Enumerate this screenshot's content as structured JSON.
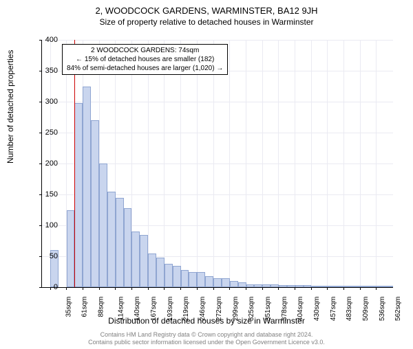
{
  "title": "2, WOODCOCK GARDENS, WARMINSTER, BA12 9JH",
  "subtitle": "Size of property relative to detached houses in Warminster",
  "ylabel": "Number of detached properties",
  "xlabel": "Distribution of detached houses by size in Warminster",
  "footer_line1": "Contains HM Land Registry data © Crown copyright and database right 2024.",
  "footer_line2": "Contains public sector information licensed under the Open Government Licence v3.0.",
  "legend": {
    "line1": "2 WOODCOCK GARDENS: 74sqm",
    "line2": "← 15% of detached houses are smaller (182)",
    "line3": "84% of semi-detached houses are larger (1,020) →"
  },
  "chart": {
    "type": "histogram",
    "ylim": [
      0,
      400
    ],
    "ytick_step": 50,
    "bar_fill": "#c9d5ee",
    "bar_stroke": "#8fa5d1",
    "grid_color": "#eaeaf2",
    "vline_color": "#cc0000",
    "vline_x": 74,
    "x_start": 22,
    "x_step": 13.2,
    "x_count": 43,
    "xticks": [
      35,
      61,
      88,
      114,
      140,
      167,
      193,
      219,
      246,
      272,
      299,
      325,
      351,
      378,
      404,
      430,
      457,
      483,
      509,
      536,
      562
    ],
    "bars": [
      0,
      60,
      0,
      125,
      298,
      325,
      270,
      200,
      155,
      145,
      128,
      90,
      85,
      55,
      48,
      38,
      35,
      28,
      25,
      25,
      18,
      15,
      15,
      10,
      8,
      5,
      5,
      4,
      4,
      3,
      3,
      3,
      3,
      2,
      2,
      2,
      2,
      2,
      2,
      2,
      2,
      2,
      2
    ]
  }
}
